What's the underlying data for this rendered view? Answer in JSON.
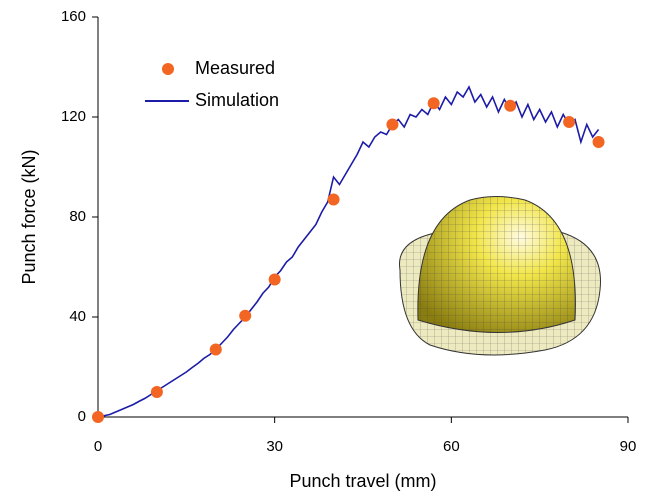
{
  "chart_data": {
    "type": "line",
    "x_label": "Punch travel (mm)",
    "y_label": "Punch force (kN)",
    "xlim": [
      0,
      90
    ],
    "xticks": [
      0,
      30,
      60,
      90
    ],
    "ylim": [
      0,
      160
    ],
    "yticks": [
      0,
      40,
      80,
      120,
      160
    ],
    "legend": "upper left",
    "series": [
      {
        "name": "Measured",
        "color": "#f26522",
        "style": "markers",
        "x": [
          0,
          10,
          20,
          25,
          30,
          40,
          50,
          57,
          70,
          80,
          85
        ],
        "values": [
          0,
          10,
          27,
          40.5,
          55,
          87,
          117,
          125.5,
          124.5,
          118,
          110
        ]
      },
      {
        "name": "Simulation",
        "color": "#1c1ca8",
        "style": "line",
        "x": [
          0,
          1,
          2,
          3,
          4,
          5,
          6,
          7,
          8,
          9,
          10,
          11,
          12,
          13,
          14,
          15,
          16,
          17,
          18,
          19,
          20,
          21,
          22,
          23,
          24,
          25,
          26,
          27,
          28,
          29,
          30,
          31,
          32,
          33,
          34,
          35,
          36,
          37,
          38,
          39,
          40,
          41,
          42,
          43,
          44,
          45,
          46,
          47,
          48,
          49,
          50,
          51,
          52,
          53,
          54,
          55,
          56,
          57,
          58,
          59,
          60,
          61,
          62,
          63,
          64,
          65,
          66,
          67,
          68,
          69,
          70,
          71,
          72,
          73,
          74,
          75,
          76,
          77,
          78,
          79,
          80,
          81,
          82,
          83,
          84,
          85
        ],
        "values": [
          0,
          0.5,
          1,
          2,
          3,
          4,
          5,
          6.3,
          7.5,
          9,
          10.5,
          12,
          13.5,
          15,
          16.5,
          18,
          19.8,
          21.5,
          23.5,
          25,
          27,
          29.5,
          32,
          35,
          37.5,
          40,
          43,
          46,
          49.5,
          52,
          56,
          58.5,
          62,
          64,
          68,
          71,
          74,
          77,
          82,
          86,
          96,
          93,
          97,
          101,
          105,
          110,
          108,
          112,
          114,
          113,
          117,
          119,
          116,
          121,
          120,
          123,
          121,
          126,
          123,
          128,
          125,
          130,
          128,
          132,
          126,
          129,
          124,
          128,
          122,
          127,
          123,
          126,
          120,
          125,
          119,
          123,
          118,
          122,
          116,
          121,
          117,
          119,
          110,
          117,
          112,
          115
        ]
      }
    ]
  }
}
